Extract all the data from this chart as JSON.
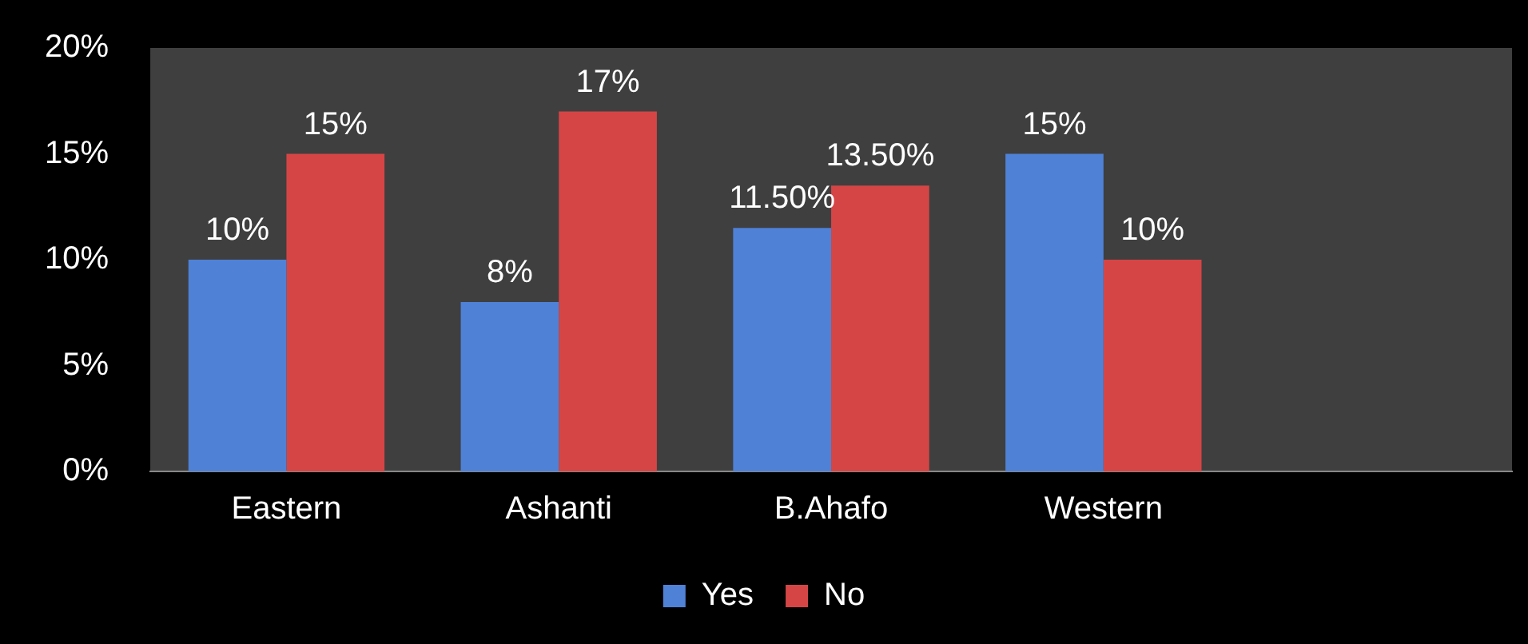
{
  "chart_data": {
    "type": "bar",
    "categories": [
      "Eastern",
      "Ashanti",
      "B.Ahafo",
      "Western",
      null
    ],
    "series": [
      {
        "name": "Yes",
        "color": "#4f81d6",
        "values": [
          10,
          8,
          11.5,
          15,
          null
        ],
        "value_labels": [
          "10%",
          "8%",
          "11.50%",
          "15%",
          null
        ]
      },
      {
        "name": "No",
        "color": "#d64545",
        "values": [
          15,
          17,
          13.5,
          10,
          null
        ],
        "value_labels": [
          "15%",
          "17%",
          "13.50%",
          "10%",
          null
        ]
      }
    ],
    "ylim": [
      0,
      20
    ],
    "yticks": [
      {
        "value": 0,
        "label": "0%"
      },
      {
        "value": 5,
        "label": "5%"
      },
      {
        "value": 10,
        "label": "10%"
      },
      {
        "value": 15,
        "label": "15%"
      },
      {
        "value": 20,
        "label": "20%"
      }
    ],
    "grid": false,
    "legend": "bottom"
  }
}
